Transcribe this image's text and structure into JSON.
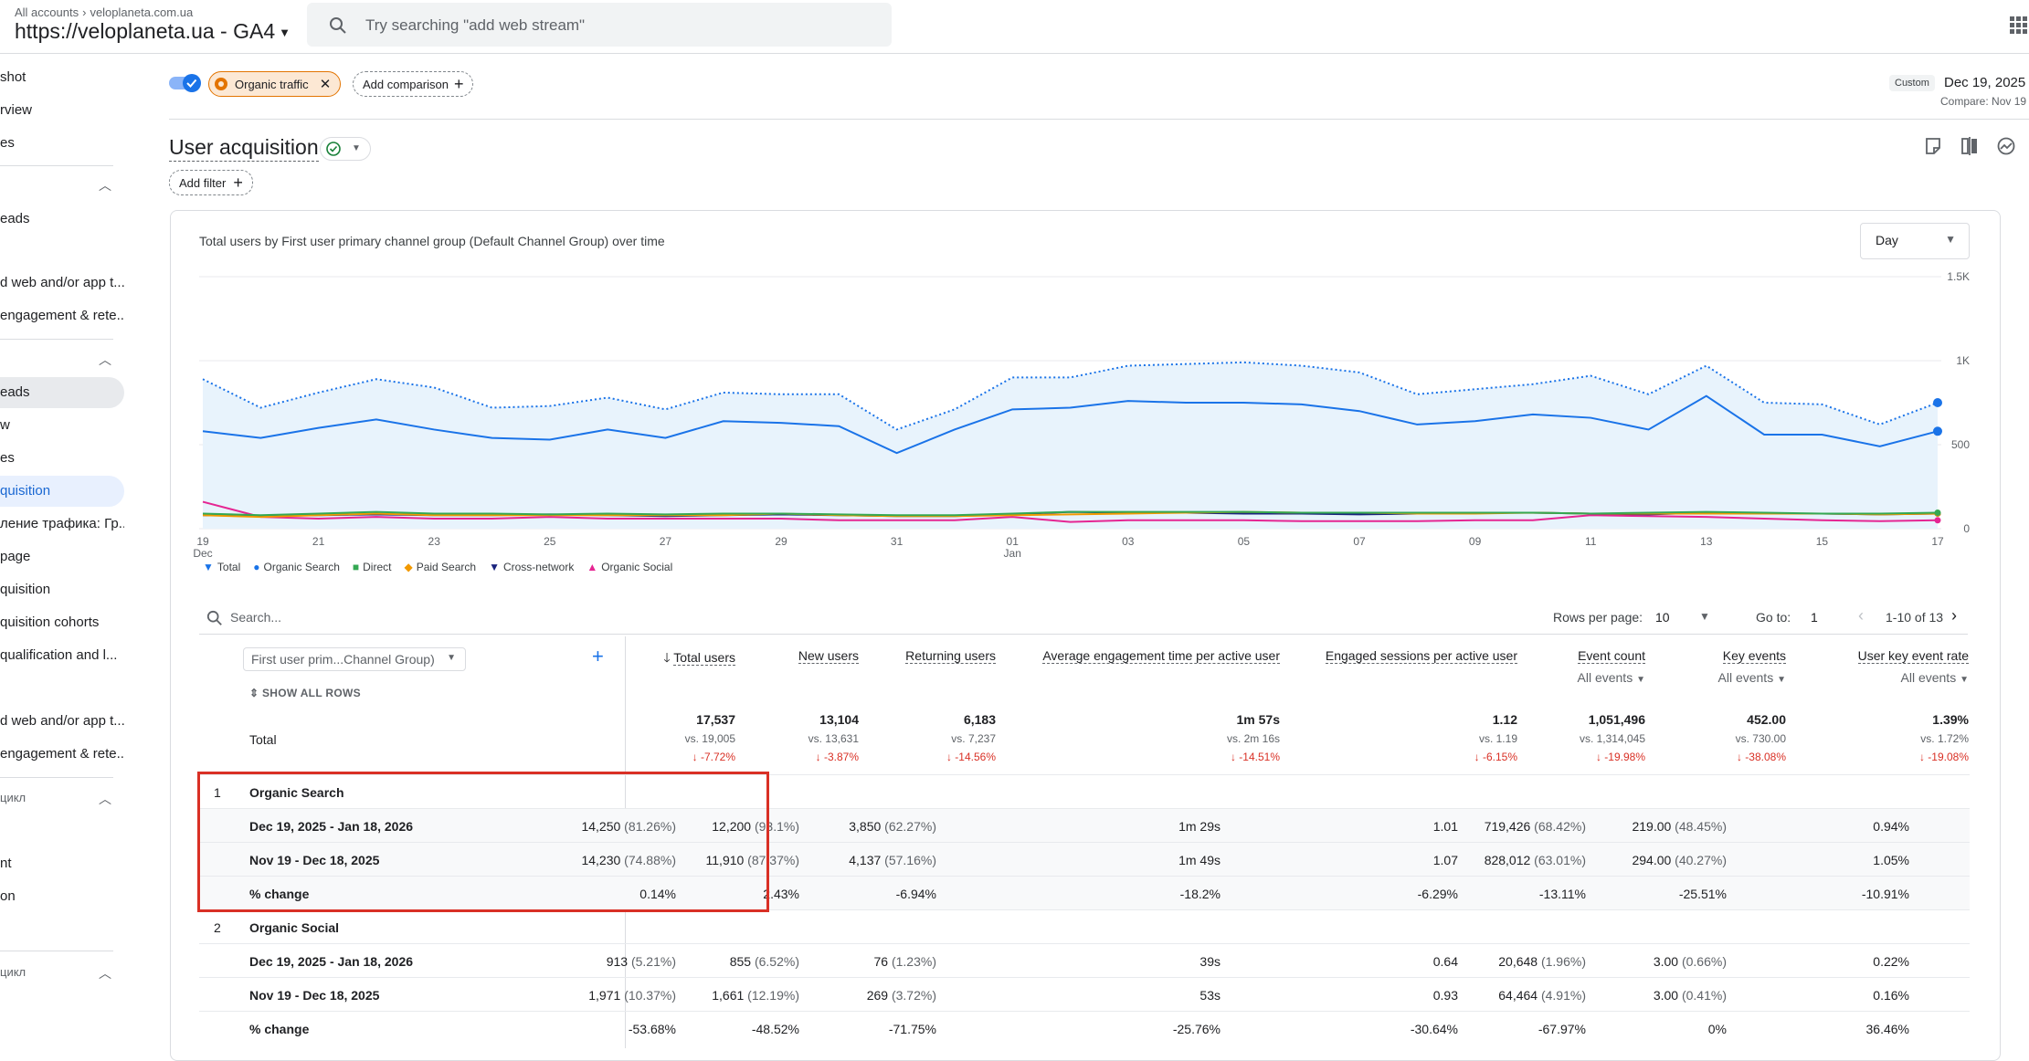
{
  "topbar": {
    "breadcrumb_all": "All accounts",
    "breadcrumb_account": "veloplaneta.com.ua",
    "property": "https://veloplaneta.ua - GA4",
    "search_placeholder": "Try searching \"add web stream\""
  },
  "sidebar": {
    "items": [
      {
        "label": "shot"
      },
      {
        "label": "rview"
      },
      {
        "label": "es"
      },
      {
        "label": "eads"
      },
      {
        "label": "d web and/or app t..."
      },
      {
        "label": "engagement & rete..."
      },
      {
        "label": "eads"
      },
      {
        "label": "w"
      },
      {
        "label": "es"
      },
      {
        "label": "quisition"
      },
      {
        "label": "ление трафика: Гр..."
      },
      {
        "label": "page"
      },
      {
        "label": "quisition"
      },
      {
        "label": "quisition cohorts"
      },
      {
        "label": "qualification and l..."
      },
      {
        "label": "d web and/or app t..."
      },
      {
        "label": "engagement & rete..."
      },
      {
        "label": "цикл"
      },
      {
        "label": "nt"
      },
      {
        "label": "on"
      },
      {
        "label": "цикл"
      }
    ]
  },
  "comparison": {
    "chip_label": "Organic traffic",
    "add_comparison": "Add comparison",
    "custom_badge": "Custom",
    "date_range": "Dec 19, 2025 -",
    "compare_range": "Compare: Nov 19"
  },
  "page": {
    "title": "User acquisition",
    "add_filter": "Add filter"
  },
  "colors": {
    "total": "#1a73e8",
    "organic_search": "#1a73e8",
    "direct": "#34a853",
    "paid_search": "#f29900",
    "cross_network": "#1a237e",
    "organic_social": "#e52592",
    "highlight": "#d93025"
  },
  "chart_data": {
    "type": "line",
    "title": "Total users by First user primary channel group (Default Channel Group) over time",
    "granularity": "Day",
    "x_tick_labels": [
      "19\nDec",
      "21",
      "23",
      "25",
      "27",
      "29",
      "31",
      "01\nJan",
      "03",
      "05",
      "07",
      "09",
      "11",
      "13",
      "15",
      "17"
    ],
    "y_tick_labels": [
      "0",
      "500",
      "1K",
      "1.5K"
    ],
    "ylim": [
      0,
      1500
    ],
    "x": [
      "Dec 19",
      "Dec 20",
      "Dec 21",
      "Dec 22",
      "Dec 23",
      "Dec 24",
      "Dec 25",
      "Dec 26",
      "Dec 27",
      "Dec 28",
      "Dec 29",
      "Dec 30",
      "Dec 31",
      "Jan 1",
      "Jan 2",
      "Jan 3",
      "Jan 4",
      "Jan 5",
      "Jan 6",
      "Jan 7",
      "Jan 8",
      "Jan 9",
      "Jan 10",
      "Jan 11",
      "Jan 12",
      "Jan 13",
      "Jan 14",
      "Jan 15",
      "Jan 16",
      "Jan 17",
      "Jan 18"
    ],
    "series": [
      {
        "name": "Total",
        "color": "#1a73e8",
        "dotted": true,
        "values": [
          890,
          720,
          810,
          890,
          840,
          720,
          730,
          780,
          710,
          810,
          800,
          800,
          590,
          710,
          900,
          900,
          970,
          980,
          990,
          970,
          930,
          800,
          830,
          860,
          910,
          800,
          970,
          750,
          740,
          620,
          750
        ]
      },
      {
        "name": "Organic Search",
        "color": "#1a73e8",
        "values": [
          580,
          540,
          600,
          650,
          590,
          540,
          530,
          590,
          540,
          640,
          630,
          610,
          450,
          590,
          710,
          720,
          760,
          750,
          750,
          740,
          700,
          620,
          640,
          680,
          660,
          590,
          790,
          560,
          560,
          490,
          580
        ]
      },
      {
        "name": "Direct",
        "color": "#34a853",
        "values": [
          90,
          80,
          90,
          100,
          90,
          90,
          85,
          90,
          85,
          90,
          90,
          85,
          80,
          80,
          90,
          100,
          100,
          100,
          100,
          95,
          95,
          95,
          95,
          95,
          90,
          95,
          100,
          95,
          90,
          90,
          95
        ]
      },
      {
        "name": "Paid Search",
        "color": "#f29900",
        "values": [
          80,
          70,
          80,
          90,
          80,
          80,
          80,
          80,
          80,
          80,
          90,
          80,
          75,
          75,
          80,
          85,
          90,
          95,
          100,
          95,
          95,
          90,
          90,
          95,
          90,
          90,
          90,
          90,
          90,
          85,
          90
        ]
      },
      {
        "name": "Cross-network",
        "color": "#1a237e",
        "values": [
          80,
          75,
          80,
          85,
          80,
          80,
          85,
          80,
          75,
          80,
          85,
          80,
          75,
          75,
          85,
          100,
          95,
          95,
          90,
          90,
          85,
          90,
          95,
          95,
          90,
          85,
          95,
          90,
          90,
          85,
          90
        ]
      },
      {
        "name": "Organic Social",
        "color": "#e52592",
        "values": [
          160,
          70,
          60,
          70,
          60,
          60,
          70,
          60,
          60,
          60,
          60,
          50,
          50,
          50,
          70,
          40,
          50,
          50,
          50,
          45,
          45,
          45,
          50,
          50,
          80,
          75,
          70,
          60,
          50,
          45,
          50
        ]
      }
    ]
  },
  "table": {
    "search_placeholder": "Search...",
    "rows_per_page_label": "Rows per page:",
    "rows_per_page": "10",
    "go_to_label": "Go to:",
    "go_to_value": "1",
    "pager_text": "1-10 of 13",
    "dimension": "First user prim...Channel Group)",
    "show_all_rows": "SHOW ALL ROWS",
    "columns": [
      {
        "label": "Total users",
        "sub": ""
      },
      {
        "label": "New users",
        "sub": ""
      },
      {
        "label": "Returning users",
        "sub": ""
      },
      {
        "label": "Average engagement time per active user",
        "sub": ""
      },
      {
        "label": "Engaged sessions per active user",
        "sub": ""
      },
      {
        "label": "Event count",
        "sub": "All events"
      },
      {
        "label": "Key events",
        "sub": "All events"
      },
      {
        "label": "User key event rate",
        "sub": "All events"
      }
    ],
    "totals": {
      "label": "Total",
      "values": [
        "17,537",
        "13,104",
        "6,183",
        "1m 57s",
        "1.12",
        "1,051,496",
        "452.00",
        "1.39%"
      ],
      "vs": [
        "vs. 19,005",
        "vs. 13,631",
        "vs. 7,237",
        "vs. 2m 16s",
        "vs. 1.19",
        "vs. 1,314,045",
        "vs. 730.00",
        "vs. 1.72%"
      ],
      "change": [
        "↓ -7.72%",
        "↓ -3.87%",
        "↓ -14.56%",
        "↓ -14.51%",
        "↓ -6.15%",
        "↓ -19.98%",
        "↓ -38.08%",
        "↓ -19.08%"
      ]
    },
    "groups": [
      {
        "index": "1",
        "name": "Organic Search",
        "rows": [
          {
            "label": "Dec 19, 2025 - Jan 18, 2026",
            "cells": [
              [
                "14,250",
                "(81.26%)"
              ],
              [
                "12,200",
                "(93.1%)"
              ],
              [
                "3,850",
                "(62.27%)"
              ],
              [
                "1m 29s",
                ""
              ],
              [
                "1.01",
                ""
              ],
              [
                "719,426",
                "(68.42%)"
              ],
              [
                "219.00",
                "(48.45%)"
              ],
              [
                "0.94%",
                ""
              ]
            ]
          },
          {
            "label": "Nov 19 - Dec 18, 2025",
            "cells": [
              [
                "14,230",
                "(74.88%)"
              ],
              [
                "11,910",
                "(87.37%)"
              ],
              [
                "4,137",
                "(57.16%)"
              ],
              [
                "1m 49s",
                ""
              ],
              [
                "1.07",
                ""
              ],
              [
                "828,012",
                "(63.01%)"
              ],
              [
                "294.00",
                "(40.27%)"
              ],
              [
                "1.05%",
                ""
              ]
            ]
          },
          {
            "label": "% change",
            "cells": [
              [
                "0.14%",
                ""
              ],
              [
                "2.43%",
                ""
              ],
              [
                "-6.94%",
                ""
              ],
              [
                "-18.2%",
                ""
              ],
              [
                "-6.29%",
                ""
              ],
              [
                "-13.11%",
                ""
              ],
              [
                "-25.51%",
                ""
              ],
              [
                "-10.91%",
                ""
              ]
            ]
          }
        ]
      },
      {
        "index": "2",
        "name": "Organic Social",
        "rows": [
          {
            "label": "Dec 19, 2025 - Jan 18, 2026",
            "cells": [
              [
                "913",
                "(5.21%)"
              ],
              [
                "855",
                "(6.52%)"
              ],
              [
                "76",
                "(1.23%)"
              ],
              [
                "39s",
                ""
              ],
              [
                "0.64",
                ""
              ],
              [
                "20,648",
                "(1.96%)"
              ],
              [
                "3.00",
                "(0.66%)"
              ],
              [
                "0.22%",
                ""
              ]
            ]
          },
          {
            "label": "Nov 19 - Dec 18, 2025",
            "cells": [
              [
                "1,971",
                "(10.37%)"
              ],
              [
                "1,661",
                "(12.19%)"
              ],
              [
                "269",
                "(3.72%)"
              ],
              [
                "53s",
                ""
              ],
              [
                "0.93",
                ""
              ],
              [
                "64,464",
                "(4.91%)"
              ],
              [
                "3.00",
                "(0.41%)"
              ],
              [
                "0.16%",
                ""
              ]
            ]
          },
          {
            "label": "% change",
            "cells": [
              [
                "-53.68%",
                ""
              ],
              [
                "-48.52%",
                ""
              ],
              [
                "-71.75%",
                ""
              ],
              [
                "-25.76%",
                ""
              ],
              [
                "-30.64%",
                ""
              ],
              [
                "-67.97%",
                ""
              ],
              [
                "0%",
                ""
              ],
              [
                "36.46%",
                ""
              ]
            ]
          }
        ]
      }
    ]
  }
}
